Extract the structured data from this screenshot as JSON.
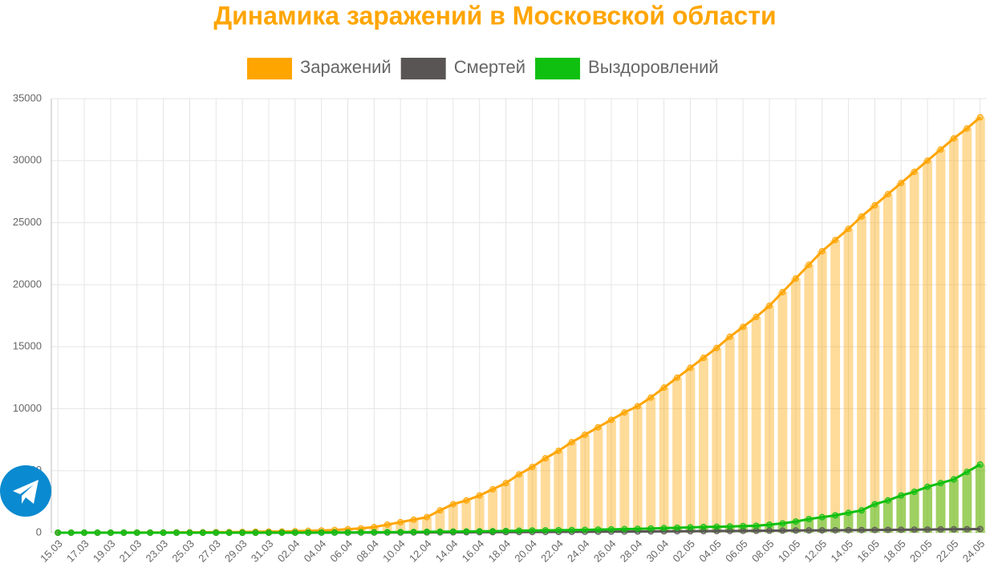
{
  "chart_data": {
    "type": "bar-line",
    "title": "Динамика заражений в Московской области",
    "categories": [
      "15.03",
      null,
      "17.03",
      null,
      "19.03",
      null,
      "21.03",
      null,
      "23.03",
      null,
      "25.03",
      null,
      "27.03",
      null,
      "29.03",
      null,
      "31.03",
      null,
      "02.04",
      null,
      "04.04",
      null,
      "06.04",
      null,
      "08.04",
      null,
      "10.04",
      null,
      "12.04",
      null,
      "14.04",
      null,
      "16.04",
      null,
      "18.04",
      null,
      "20.04",
      null,
      "22.04",
      null,
      "24.04",
      null,
      "26.04",
      null,
      "28.04",
      null,
      "30.04",
      null,
      "02.05",
      null,
      "04.05",
      null,
      "06.05",
      null,
      "08.05",
      null,
      "10.05",
      null,
      "12.05",
      null,
      "14.05",
      null,
      "16.05",
      null,
      "18.05",
      null,
      "20.05",
      null,
      "22.05",
      null,
      "24.05"
    ],
    "series": [
      {
        "name": "Заражений",
        "color": "#ffa500",
        "bars": true,
        "values": [
          3,
          4,
          5,
          7,
          8,
          11,
          14,
          17,
          20,
          25,
          30,
          36,
          44,
          50,
          60,
          75,
          90,
          100,
          120,
          150,
          180,
          220,
          280,
          350,
          450,
          650,
          850,
          1050,
          1250,
          1800,
          2300,
          2600,
          3000,
          3500,
          4000,
          4700,
          5300,
          6000,
          6600,
          7300,
          7900,
          8500,
          9100,
          9700,
          10200,
          10900,
          11700,
          12500,
          13300,
          14100,
          14900,
          15800,
          16600,
          17400,
          18300,
          19400,
          20500,
          21600,
          22700,
          23600,
          24500,
          25500,
          26400,
          27300,
          28200,
          29100,
          30000,
          30900,
          31800,
          32600,
          33500
        ]
      },
      {
        "name": "Смертей",
        "color": "#5a5555",
        "bars": false,
        "values": [
          0,
          0,
          0,
          0,
          0,
          0,
          0,
          0,
          0,
          0,
          0,
          0,
          0,
          0,
          0,
          1,
          1,
          2,
          3,
          4,
          5,
          6,
          8,
          10,
          12,
          14,
          17,
          20,
          23,
          26,
          30,
          34,
          38,
          42,
          46,
          50,
          55,
          60,
          65,
          70,
          75,
          80,
          86,
          92,
          98,
          104,
          110,
          116,
          122,
          128,
          134,
          140,
          147,
          154,
          161,
          168,
          175,
          182,
          190,
          198,
          206,
          214,
          222,
          230,
          238,
          246,
          254,
          263,
          272,
          282,
          295
        ]
      },
      {
        "name": "Выздоровлений",
        "color": "#10c010",
        "bars": true,
        "values": [
          0,
          0,
          0,
          0,
          0,
          0,
          0,
          0,
          0,
          0,
          0,
          0,
          0,
          0,
          0,
          0,
          5,
          5,
          8,
          10,
          12,
          15,
          20,
          25,
          30,
          40,
          50,
          60,
          70,
          80,
          90,
          100,
          110,
          120,
          140,
          160,
          180,
          190,
          200,
          210,
          230,
          250,
          270,
          290,
          310,
          340,
          370,
          400,
          430,
          460,
          480,
          500,
          530,
          560,
          650,
          750,
          900,
          1100,
          1250,
          1400,
          1600,
          1800,
          2300,
          2600,
          3000,
          3300,
          3700,
          4000,
          4300,
          4900,
          5500
        ]
      }
    ],
    "ylim": [
      0,
      35000
    ],
    "yticks": [
      0,
      5000,
      10000,
      15000,
      20000,
      25000,
      30000,
      35000
    ],
    "grid": true
  }
}
